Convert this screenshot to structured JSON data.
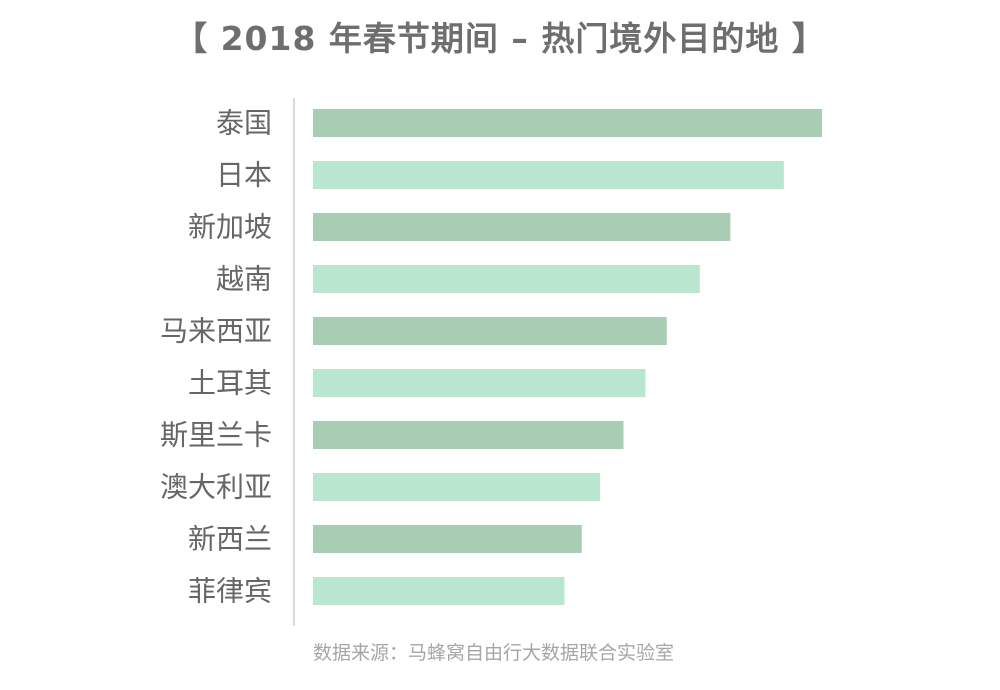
{
  "chart_data": {
    "type": "bar",
    "orientation": "horizontal",
    "title": "【 2018 年春节期间 – 热门境外目的地 】",
    "categories": [
      "泰国",
      "日本",
      "新加坡",
      "越南",
      "马来西亚",
      "土耳其",
      "斯里兰卡",
      "澳大利亚",
      "新西兰",
      "菲律宾"
    ],
    "values": [
      100,
      92.5,
      82,
      76,
      69.5,
      65.3,
      61,
      56.4,
      52.8,
      49.4
    ],
    "xlim": [
      0,
      100
    ],
    "colors": [
      "#a8cdb4",
      "#b8e6cf"
    ],
    "grid": false,
    "source": "数据来源：马蜂窝自由行大数据联合实验室"
  }
}
